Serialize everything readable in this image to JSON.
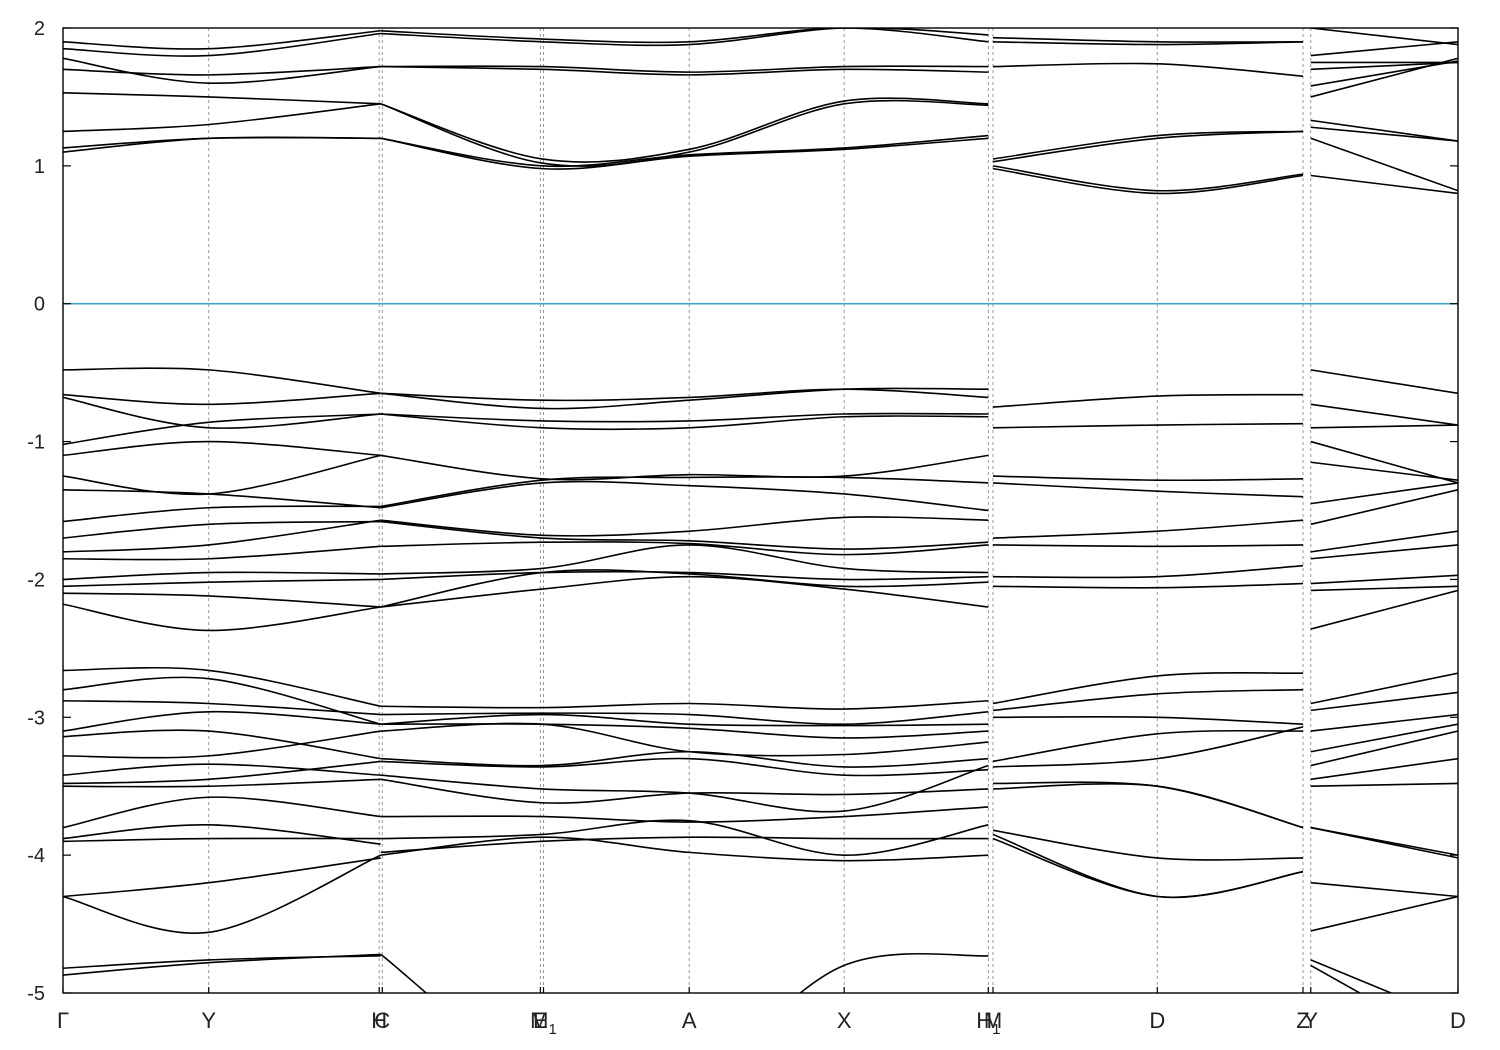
{
  "chart_data": {
    "type": "line",
    "title": "",
    "xlabel": "",
    "ylabel": "",
    "ylim": [
      -5,
      2
    ],
    "yticks": [
      "2",
      "1",
      "0",
      "-1",
      "-2",
      "-3",
      "-4",
      "-5"
    ],
    "yticks_values": [
      2,
      1,
      0,
      -1,
      -2,
      -3,
      -4,
      -5
    ],
    "grid": "vertical dashed lines at k-points",
    "colors": {
      "bands": "#000000",
      "fermi": "#3aa7c4",
      "kgrid": "#999999"
    },
    "fermi_level": 0,
    "kpath_length": 9.0,
    "kpoints": [
      {
        "label": "Γ",
        "sub": "",
        "k": 0.0
      },
      {
        "label": "Y",
        "sub": "",
        "k": 0.94
      },
      {
        "label": "H",
        "sub": "",
        "k": 2.04
      },
      {
        "label": "C",
        "sub": "",
        "k": 2.06
      },
      {
        "label": "E",
        "sub": "",
        "k": 3.08
      },
      {
        "label": "M",
        "sub": "1",
        "k": 3.1
      },
      {
        "label": "A",
        "sub": "",
        "k": 4.04
      },
      {
        "label": "X",
        "sub": "",
        "k": 5.04
      },
      {
        "label": "H",
        "sub": "1",
        "k": 5.97
      },
      {
        "label": "M",
        "sub": "",
        "k": 6.0
      },
      {
        "label": "D",
        "sub": "",
        "k": 7.06
      },
      {
        "label": "Z",
        "sub": "",
        "k": 8.0
      },
      {
        "label": "Y",
        "sub": "",
        "k": 8.05
      },
      {
        "label": "D",
        "sub": "",
        "k": 9.0
      }
    ],
    "segments": [
      {
        "k": [
          0.0,
          0.94,
          2.05
        ],
        "bands": [
          [
            -4.87,
            -4.78,
            -4.72
          ],
          [
            -4.82,
            -4.76,
            -4.73
          ],
          [
            -4.3,
            -4.2,
            -4.02
          ],
          [
            -4.3,
            -4.56,
            -4.0
          ],
          [
            -3.9,
            -3.88,
            -3.88
          ],
          [
            -3.88,
            -3.78,
            -3.92
          ],
          [
            -3.8,
            -3.58,
            -3.72
          ],
          [
            -3.5,
            -3.5,
            -3.45
          ],
          [
            -3.48,
            -3.45,
            -3.32
          ],
          [
            -3.42,
            -3.34,
            -3.42
          ],
          [
            -3.28,
            -3.28,
            -3.1
          ],
          [
            -3.14,
            -3.1,
            -3.3
          ],
          [
            -3.1,
            -2.96,
            -3.05
          ],
          [
            -2.88,
            -2.9,
            -2.98
          ],
          [
            -2.8,
            -2.72,
            -3.05
          ],
          [
            -2.66,
            -2.66,
            -2.92
          ],
          [
            -2.18,
            -2.37,
            -2.2
          ],
          [
            -2.1,
            -2.12,
            -2.2
          ],
          [
            -2.05,
            -2.02,
            -2.0
          ],
          [
            -2.0,
            -1.95,
            -1.96
          ],
          [
            -1.85,
            -1.85,
            -1.76
          ],
          [
            -1.8,
            -1.75,
            -1.57
          ],
          [
            -1.7,
            -1.6,
            -1.58
          ],
          [
            -1.58,
            -1.48,
            -1.47
          ],
          [
            -1.35,
            -1.38,
            -1.48
          ],
          [
            -1.25,
            -1.38,
            -1.1
          ],
          [
            -1.1,
            -1.0,
            -1.1
          ],
          [
            -1.02,
            -0.86,
            -0.8
          ],
          [
            -0.68,
            -0.9,
            -0.8
          ],
          [
            -0.66,
            -0.73,
            -0.65
          ],
          [
            -0.48,
            -0.48,
            -0.65
          ],
          [
            1.1,
            1.2,
            1.2
          ],
          [
            1.13,
            1.2,
            1.2
          ],
          [
            1.25,
            1.3,
            1.45
          ],
          [
            1.53,
            1.5,
            1.45
          ],
          [
            1.7,
            1.66,
            1.72
          ],
          [
            1.78,
            1.6,
            1.72
          ],
          [
            1.85,
            1.8,
            1.96
          ],
          [
            1.9,
            1.85,
            1.98
          ]
        ]
      },
      {
        "k": [
          2.05,
          3.09,
          4.04,
          5.04,
          5.97
        ],
        "bands": [
          [
            -4.72,
            -5.6,
            -5.6,
            -4.8,
            -4.73
          ],
          [
            -4.0,
            -3.87,
            -3.98,
            -4.04,
            -4.0
          ],
          [
            -3.98,
            -3.9,
            -3.87,
            -3.88,
            -3.88
          ],
          [
            -3.88,
            -3.85,
            -3.75,
            -4.0,
            -3.78
          ],
          [
            -3.72,
            -3.72,
            -3.76,
            -3.72,
            -3.65
          ],
          [
            -3.45,
            -3.62,
            -3.55,
            -3.56,
            -3.52
          ],
          [
            -3.42,
            -3.52,
            -3.55,
            -3.68,
            -3.35
          ],
          [
            -3.32,
            -3.36,
            -3.3,
            -3.42,
            -3.38
          ],
          [
            -3.3,
            -3.35,
            -3.25,
            -3.36,
            -3.3
          ],
          [
            -3.1,
            -3.05,
            -3.25,
            -3.27,
            -3.18
          ],
          [
            -3.05,
            -3.05,
            -3.08,
            -3.15,
            -3.1
          ],
          [
            -3.05,
            -2.98,
            -3.05,
            -3.06,
            -3.05
          ],
          [
            -2.98,
            -2.97,
            -2.98,
            -3.05,
            -2.96
          ],
          [
            -2.92,
            -2.93,
            -2.9,
            -2.94,
            -2.88
          ],
          [
            -2.2,
            -2.07,
            -1.98,
            -2.07,
            -2.2
          ],
          [
            -2.2,
            -1.95,
            -1.96,
            -2.05,
            -2.02
          ],
          [
            -2.0,
            -1.95,
            -1.95,
            -2.0,
            -1.98
          ],
          [
            -1.96,
            -1.92,
            -1.75,
            -1.92,
            -1.95
          ],
          [
            -1.76,
            -1.73,
            -1.74,
            -1.82,
            -1.75
          ],
          [
            -1.58,
            -1.7,
            -1.72,
            -1.78,
            -1.73
          ],
          [
            -1.57,
            -1.68,
            -1.65,
            -1.55,
            -1.57
          ],
          [
            -1.48,
            -1.3,
            -1.32,
            -1.38,
            -1.5
          ],
          [
            -1.47,
            -1.28,
            -1.26,
            -1.26,
            -1.3
          ],
          [
            -1.1,
            -1.27,
            -1.24,
            -1.25,
            -1.1
          ],
          [
            -0.8,
            -0.9,
            -0.9,
            -0.82,
            -0.82
          ],
          [
            -0.8,
            -0.85,
            -0.85,
            -0.8,
            -0.8
          ],
          [
            -0.65,
            -0.76,
            -0.7,
            -0.62,
            -0.62
          ],
          [
            -0.65,
            -0.7,
            -0.68,
            -0.62,
            -0.68
          ],
          [
            1.2,
            0.98,
            1.07,
            1.12,
            1.2
          ],
          [
            1.2,
            1.0,
            1.08,
            1.13,
            1.22
          ],
          [
            1.45,
            1.02,
            1.1,
            1.45,
            1.44
          ],
          [
            1.45,
            1.05,
            1.12,
            1.47,
            1.45
          ],
          [
            1.72,
            1.72,
            1.68,
            1.72,
            1.72
          ],
          [
            1.72,
            1.7,
            1.66,
            1.7,
            1.68
          ],
          [
            1.96,
            1.9,
            1.88,
            2.0,
            1.95
          ],
          [
            1.98,
            1.92,
            1.9,
            2.0,
            1.9
          ]
        ]
      },
      {
        "k": [
          6.0,
          7.06,
          8.0
        ],
        "bands": [
          [
            -3.85,
            -4.3,
            -4.12
          ],
          [
            -3.88,
            -4.3,
            -4.12
          ],
          [
            -3.82,
            -4.02,
            -4.02
          ],
          [
            -3.52,
            -3.5,
            -3.8
          ],
          [
            -3.48,
            -3.5,
            -3.8
          ],
          [
            -3.36,
            -3.3,
            -3.07
          ],
          [
            -3.32,
            -3.12,
            -3.1
          ],
          [
            -3.0,
            -3.0,
            -3.05
          ],
          [
            -2.95,
            -2.83,
            -2.8
          ],
          [
            -2.9,
            -2.7,
            -2.68
          ],
          [
            -2.05,
            -2.06,
            -2.03
          ],
          [
            -1.98,
            -1.98,
            -1.9
          ],
          [
            -1.75,
            -1.76,
            -1.75
          ],
          [
            -1.7,
            -1.65,
            -1.57
          ],
          [
            -1.3,
            -1.36,
            -1.4
          ],
          [
            -1.25,
            -1.28,
            -1.27
          ],
          [
            -0.9,
            -0.88,
            -0.87
          ],
          [
            -0.75,
            -0.67,
            -0.66
          ],
          [
            0.98,
            0.8,
            0.93
          ],
          [
            1.0,
            0.82,
            0.94
          ],
          [
            1.03,
            1.2,
            1.25
          ],
          [
            1.05,
            1.22,
            1.25
          ],
          [
            1.72,
            1.74,
            1.65
          ],
          [
            1.9,
            1.88,
            1.9
          ],
          [
            1.93,
            1.9,
            1.9
          ]
        ]
      },
      {
        "k": [
          8.05,
          9.0
        ],
        "bands": [
          [
            -4.76,
            -5.2
          ],
          [
            -4.8,
            -5.4
          ],
          [
            -4.55,
            -4.3
          ],
          [
            -4.2,
            -4.3
          ],
          [
            -3.8,
            -4.0
          ],
          [
            -3.8,
            -4.02
          ],
          [
            -3.5,
            -3.48
          ],
          [
            -3.45,
            -3.3
          ],
          [
            -3.35,
            -3.1
          ],
          [
            -3.25,
            -3.05
          ],
          [
            -3.1,
            -2.98
          ],
          [
            -2.95,
            -2.82
          ],
          [
            -2.9,
            -2.68
          ],
          [
            -2.36,
            -2.08
          ],
          [
            -2.08,
            -2.05
          ],
          [
            -2.03,
            -1.97
          ],
          [
            -1.85,
            -1.75
          ],
          [
            -1.8,
            -1.65
          ],
          [
            -1.6,
            -1.35
          ],
          [
            -1.45,
            -1.3
          ],
          [
            -1.15,
            -1.28
          ],
          [
            -1.0,
            -1.3
          ],
          [
            -0.9,
            -0.88
          ],
          [
            -0.73,
            -0.88
          ],
          [
            -0.48,
            -0.65
          ],
          [
            0.93,
            0.8
          ],
          [
            1.2,
            0.82
          ],
          [
            1.28,
            1.18
          ],
          [
            1.33,
            1.18
          ],
          [
            1.5,
            1.78
          ],
          [
            1.58,
            1.76
          ],
          [
            1.7,
            1.75
          ],
          [
            1.75,
            1.75
          ],
          [
            1.8,
            1.9
          ],
          [
            2.0,
            1.88
          ]
        ]
      }
    ]
  }
}
